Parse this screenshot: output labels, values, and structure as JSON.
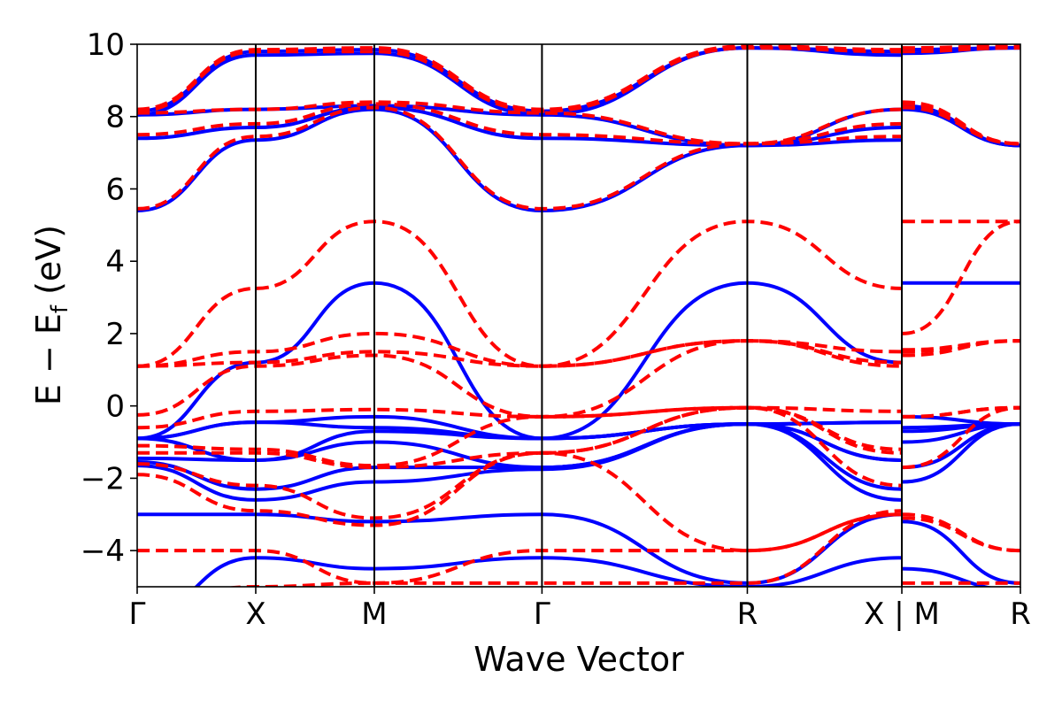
{
  "chart_data": {
    "type": "line",
    "title": "",
    "xlabel": "Wave Vector",
    "ylabel": "E − E",
    "ylabel_sub": "f",
    "ylabel_unit": " (eV)",
    "ylim": [
      -5,
      10
    ],
    "yticks": [
      -4,
      -2,
      0,
      2,
      4,
      6,
      8,
      10
    ],
    "ytick_labels": [
      "−4",
      "−2",
      "0",
      "2",
      "4",
      "6",
      "8",
      "10"
    ],
    "path_segments": [
      {
        "points": [
          "Γ",
          "X",
          "M",
          "Γ",
          "R",
          "X"
        ],
        "xlim": [
          0,
          6.449
        ]
      },
      {
        "points": [
          "M",
          "R"
        ],
        "xlim": [
          6.449,
          7.449
        ]
      }
    ],
    "high_symmetry_points": [
      {
        "label": "Γ",
        "x": 0.0
      },
      {
        "label": "X",
        "x": 1.0
      },
      {
        "label": "M",
        "x": 2.0
      },
      {
        "label": "Γ",
        "x": 3.414
      },
      {
        "label": "R",
        "x": 5.146
      },
      {
        "label": "X | M",
        "x": 6.449
      },
      {
        "label": "R",
        "x": 7.449
      }
    ],
    "series": [
      {
        "color": "#0000ff",
        "style": "solid",
        "x": [
          0,
          1,
          2,
          3.414,
          5.146,
          6.449,
          6.455,
          7.449
        ],
        "bands": [
          [
            -5.8,
            -4.2,
            -4.5,
            -4.2,
            -5.0,
            -4.2,
            -4.5,
            -5.1
          ],
          [
            -3.0,
            -3.0,
            -3.2,
            -3.0,
            -4.9,
            -3.0,
            -3.2,
            -4.9
          ],
          [
            -1.65,
            -2.6,
            -2.1,
            -1.75,
            -0.5,
            -2.6,
            -2.1,
            -0.5
          ],
          [
            -1.55,
            -2.3,
            -1.7,
            -1.7,
            -0.5,
            -2.3,
            -1.7,
            -0.5
          ],
          [
            -1.45,
            -1.5,
            -1.0,
            -1.7,
            -0.5,
            -1.5,
            -1.0,
            -0.5
          ],
          [
            -0.9,
            -1.5,
            -0.7,
            -0.9,
            -0.5,
            -1.5,
            -0.7,
            -0.5
          ],
          [
            -0.9,
            -0.45,
            -0.6,
            -0.9,
            -0.5,
            -0.45,
            -0.6,
            -0.5
          ],
          [
            -0.9,
            -0.45,
            -0.3,
            -0.9,
            -0.5,
            -0.45,
            -0.3,
            -0.5
          ],
          [
            -0.9,
            1.2,
            3.4,
            -0.9,
            3.4,
            1.2,
            3.4,
            3.4
          ],
          [
            5.4,
            7.35,
            8.2,
            5.4,
            7.2,
            7.35,
            8.2,
            7.2
          ],
          [
            7.4,
            7.7,
            8.25,
            7.4,
            7.2,
            7.7,
            8.25,
            7.2
          ],
          [
            8.05,
            8.2,
            8.3,
            8.05,
            7.2,
            8.2,
            8.3,
            7.2
          ],
          [
            8.05,
            9.7,
            9.75,
            8.05,
            9.9,
            9.7,
            9.75,
            9.9
          ],
          [
            8.15,
            9.8,
            9.85,
            8.15,
            9.9,
            9.8,
            9.85,
            9.9
          ]
        ]
      },
      {
        "color": "#ff0000",
        "style": "dashed",
        "x": [
          0,
          1,
          2,
          3.414,
          5.146,
          6.449,
          6.455,
          7.449
        ],
        "bands": [
          [
            -5.5,
            -5.0,
            -4.9,
            -4.9,
            -4.9,
            -2.9,
            -4.9,
            -4.9
          ],
          [
            -4.0,
            -4.0,
            -4.9,
            -4.0,
            -4.0,
            -3.0,
            -3.0,
            -4.0
          ],
          [
            -1.9,
            -2.9,
            -3.3,
            -1.3,
            -4.0,
            -3.0,
            -3.1,
            -4.0
          ],
          [
            -1.6,
            -2.2,
            -3.1,
            -1.3,
            -0.05,
            -2.2,
            -1.7,
            -0.05
          ],
          [
            -1.3,
            -1.3,
            -1.7,
            -1.3,
            -0.05,
            -1.3,
            -0.3,
            -0.05
          ],
          [
            -1.1,
            -1.2,
            -1.65,
            -0.3,
            -0.05,
            -1.2,
            -0.3,
            -0.05
          ],
          [
            -0.6,
            -0.15,
            -0.1,
            -0.3,
            -0.05,
            -0.15,
            1.4,
            1.8
          ],
          [
            -0.25,
            1.1,
            1.4,
            -0.3,
            1.8,
            1.1,
            1.5,
            1.8
          ],
          [
            1.1,
            1.2,
            1.5,
            1.1,
            1.8,
            1.2,
            1.55,
            1.8
          ],
          [
            1.1,
            1.5,
            2.0,
            1.1,
            1.8,
            1.5,
            2.0,
            5.1
          ],
          [
            1.1,
            3.25,
            5.1,
            1.1,
            5.1,
            3.25,
            5.1,
            5.1
          ],
          [
            5.45,
            7.45,
            8.25,
            5.45,
            7.25,
            7.45,
            8.25,
            7.25
          ],
          [
            7.5,
            7.8,
            8.35,
            7.5,
            7.25,
            7.8,
            8.35,
            7.25
          ],
          [
            8.1,
            8.2,
            8.4,
            8.1,
            7.25,
            8.2,
            8.4,
            7.25
          ],
          [
            8.15,
            9.8,
            9.8,
            8.15,
            9.9,
            9.8,
            9.8,
            9.9
          ],
          [
            8.2,
            9.85,
            9.9,
            8.2,
            9.95,
            9.85,
            9.9,
            9.95
          ]
        ]
      }
    ],
    "grid": false,
    "legend": "none"
  }
}
